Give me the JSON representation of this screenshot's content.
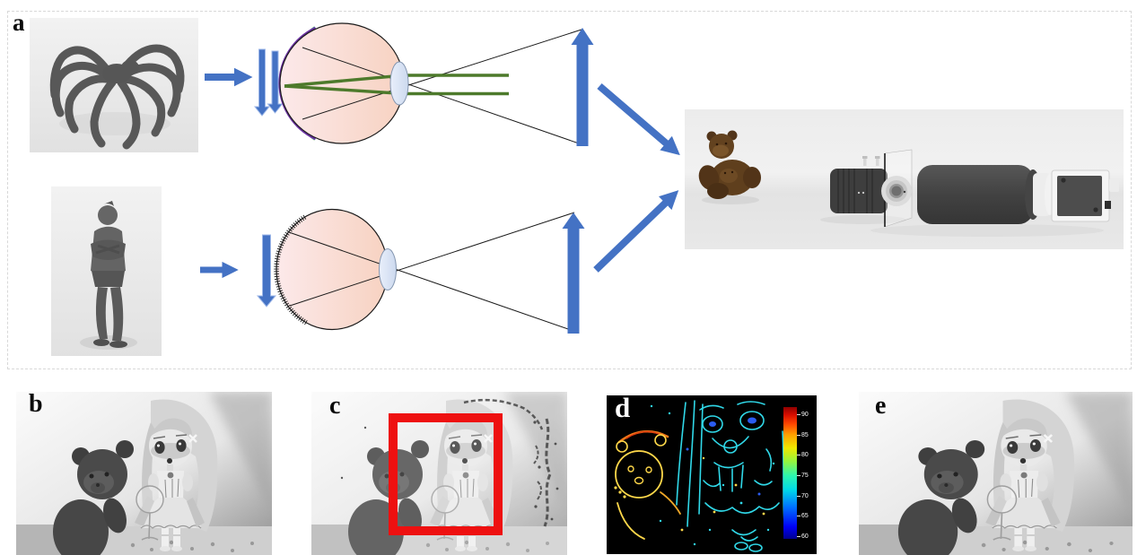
{
  "figure": {
    "panels": {
      "a": {
        "label": "a"
      },
      "b": {
        "label": "b"
      },
      "c": {
        "label": "c"
      },
      "d": {
        "label": "d",
        "colorbar": {
          "ticks": [
            "90",
            "85",
            "80",
            "75",
            "70",
            "65",
            "60"
          ],
          "min": "60",
          "max": "90",
          "colormap": "jet"
        }
      },
      "e": {
        "label": "e"
      }
    },
    "colors": {
      "arrow_blue": "#4472C4",
      "ray_green": "#4d7a2b",
      "retina_outer_green": "#7fae5c",
      "retina_teal": "#3f9bb0",
      "retina_purple": "#6a30a0",
      "eye_pink": "#f9dcd4",
      "lens_blue": "#dbe5f1",
      "roi_red": "#ee1010",
      "edge_cyan": "#30d8e8",
      "edge_yellow": "#ffd84a",
      "edge_orange": "#f07818"
    }
  }
}
